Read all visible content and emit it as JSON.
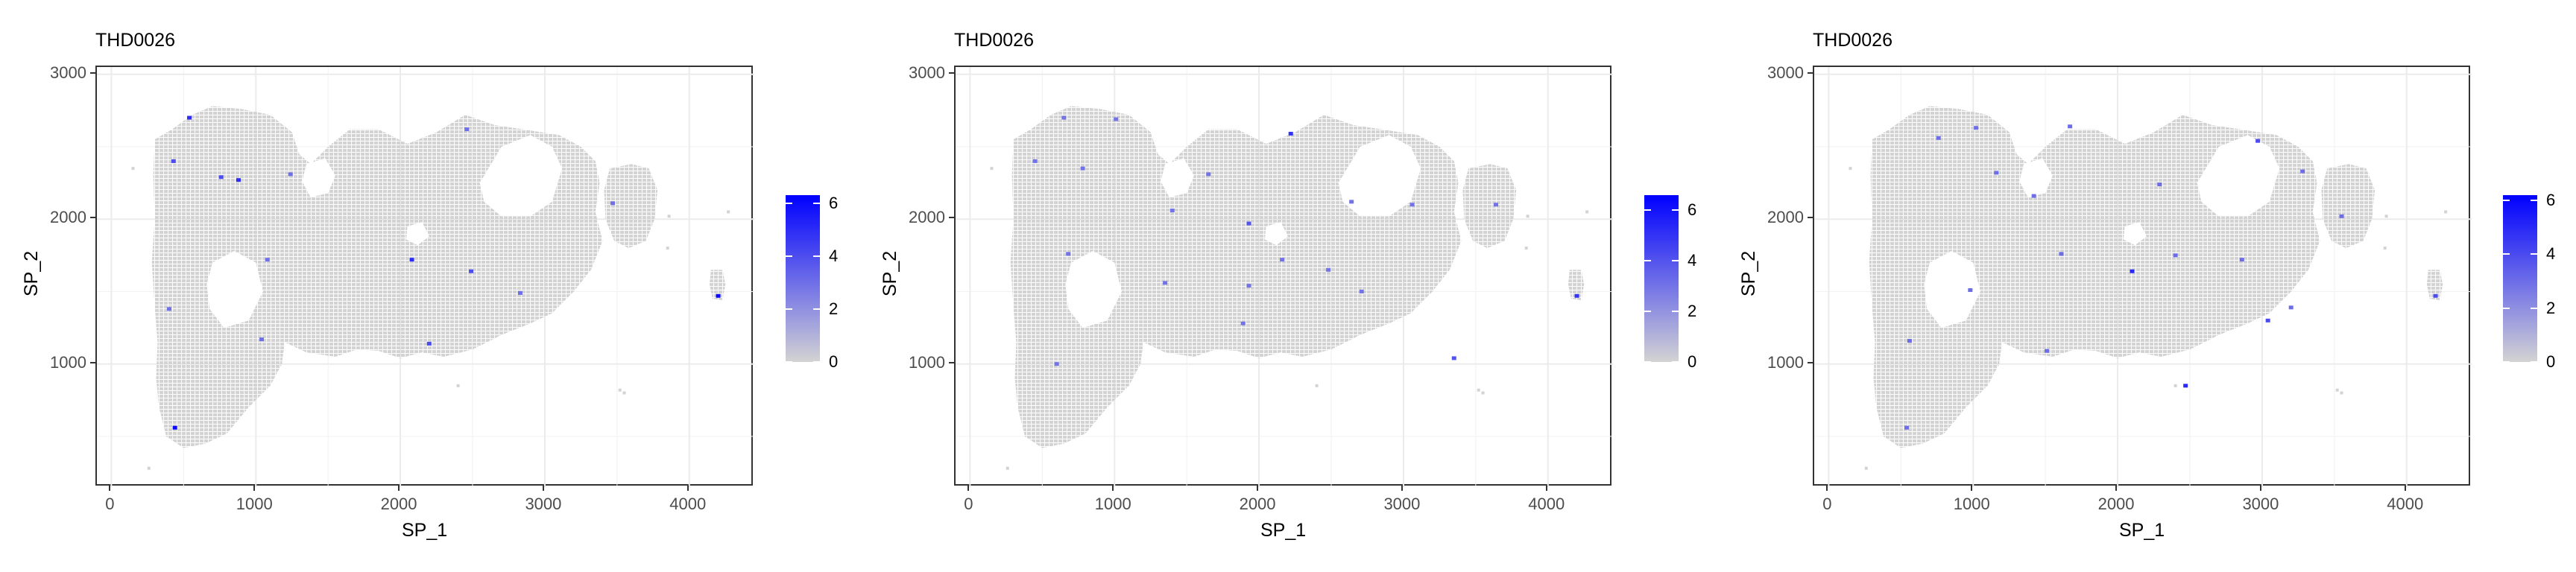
{
  "chart_data": [
    {
      "type": "scatter",
      "title": "THD0026",
      "xlabel": "SP_1",
      "ylabel": "SP_2",
      "xlim": [
        -100,
        4450
      ],
      "ylim": [
        150,
        3050
      ],
      "xticks": [
        0,
        1000,
        2000,
        3000,
        4000
      ],
      "yticks": [
        1000,
        2000,
        3000
      ],
      "legend": {
        "position": "right",
        "ticks": [
          0,
          2,
          4,
          6
        ],
        "low_color": "#d3d3d3",
        "high_color": "#0000ff",
        "max": 6.3
      },
      "grid": true,
      "highlight_points": [
        {
          "x": 540,
          "y": 2700,
          "v": 5
        },
        {
          "x": 430,
          "y": 2400,
          "v": 4
        },
        {
          "x": 760,
          "y": 2290,
          "v": 4
        },
        {
          "x": 880,
          "y": 2270,
          "v": 5
        },
        {
          "x": 1240,
          "y": 2310,
          "v": 3
        },
        {
          "x": 2460,
          "y": 2620,
          "v": 3
        },
        {
          "x": 2080,
          "y": 1720,
          "v": 5
        },
        {
          "x": 2490,
          "y": 1640,
          "v": 4
        },
        {
          "x": 3470,
          "y": 2110,
          "v": 3
        },
        {
          "x": 2830,
          "y": 1490,
          "v": 3
        },
        {
          "x": 2200,
          "y": 1140,
          "v": 4
        },
        {
          "x": 1040,
          "y": 1170,
          "v": 3
        },
        {
          "x": 400,
          "y": 1380,
          "v": 3
        },
        {
          "x": 440,
          "y": 560,
          "v": 6
        },
        {
          "x": 4200,
          "y": 1470,
          "v": 6
        },
        {
          "x": 1080,
          "y": 1720,
          "v": 3
        }
      ]
    },
    {
      "type": "scatter",
      "title": "THD0026",
      "xlabel": "SP_1",
      "ylabel": "SP_2",
      "xlim": [
        -100,
        4450
      ],
      "ylim": [
        150,
        3050
      ],
      "xticks": [
        0,
        1000,
        2000,
        3000,
        4000
      ],
      "yticks": [
        1000,
        2000,
        3000
      ],
      "legend": {
        "position": "right",
        "ticks": [
          0,
          2,
          4,
          6
        ],
        "low_color": "#d3d3d3",
        "high_color": "#0000ff",
        "max": 6.6
      },
      "grid": true,
      "highlight_points": [
        {
          "x": 650,
          "y": 2700,
          "v": 3
        },
        {
          "x": 1010,
          "y": 2690,
          "v": 3
        },
        {
          "x": 2220,
          "y": 2590,
          "v": 5
        },
        {
          "x": 450,
          "y": 2400,
          "v": 3
        },
        {
          "x": 780,
          "y": 2350,
          "v": 3
        },
        {
          "x": 1400,
          "y": 2060,
          "v": 3
        },
        {
          "x": 1930,
          "y": 1970,
          "v": 4
        },
        {
          "x": 2640,
          "y": 2120,
          "v": 3
        },
        {
          "x": 3060,
          "y": 2100,
          "v": 3
        },
        {
          "x": 680,
          "y": 1760,
          "v": 3
        },
        {
          "x": 1350,
          "y": 1560,
          "v": 3
        },
        {
          "x": 1930,
          "y": 1540,
          "v": 3
        },
        {
          "x": 2160,
          "y": 1720,
          "v": 3
        },
        {
          "x": 2710,
          "y": 1500,
          "v": 3
        },
        {
          "x": 1890,
          "y": 1280,
          "v": 3
        },
        {
          "x": 3350,
          "y": 1040,
          "v": 4
        },
        {
          "x": 4200,
          "y": 1470,
          "v": 5
        },
        {
          "x": 600,
          "y": 1000,
          "v": 3
        },
        {
          "x": 1650,
          "y": 2310,
          "v": 3
        },
        {
          "x": 2480,
          "y": 1650,
          "v": 3
        },
        {
          "x": 3640,
          "y": 2100,
          "v": 3
        }
      ]
    },
    {
      "type": "scatter",
      "title": "THD0026",
      "xlabel": "SP_1",
      "ylabel": "SP_2",
      "xlim": [
        -100,
        4450
      ],
      "ylim": [
        150,
        3050
      ],
      "xticks": [
        0,
        1000,
        2000,
        3000,
        4000
      ],
      "yticks": [
        1000,
        2000,
        3000
      ],
      "legend": {
        "position": "right",
        "ticks": [
          0,
          2,
          4,
          6
        ],
        "low_color": "#d3d3d3",
        "high_color": "#0000ff",
        "max": 6.2
      },
      "grid": true,
      "highlight_points": [
        {
          "x": 760,
          "y": 2560,
          "v": 3
        },
        {
          "x": 1020,
          "y": 2630,
          "v": 3
        },
        {
          "x": 1670,
          "y": 2640,
          "v": 3
        },
        {
          "x": 2290,
          "y": 2240,
          "v": 3
        },
        {
          "x": 2970,
          "y": 2540,
          "v": 4
        },
        {
          "x": 3280,
          "y": 2330,
          "v": 3
        },
        {
          "x": 1160,
          "y": 2320,
          "v": 3
        },
        {
          "x": 1420,
          "y": 2160,
          "v": 3
        },
        {
          "x": 1610,
          "y": 1760,
          "v": 3
        },
        {
          "x": 2100,
          "y": 1640,
          "v": 5
        },
        {
          "x": 2400,
          "y": 1750,
          "v": 3
        },
        {
          "x": 2860,
          "y": 1720,
          "v": 3
        },
        {
          "x": 3040,
          "y": 1300,
          "v": 4
        },
        {
          "x": 3200,
          "y": 1390,
          "v": 3
        },
        {
          "x": 2470,
          "y": 850,
          "v": 5
        },
        {
          "x": 980,
          "y": 1510,
          "v": 3
        },
        {
          "x": 560,
          "y": 1160,
          "v": 3
        },
        {
          "x": 540,
          "y": 560,
          "v": 3
        },
        {
          "x": 3550,
          "y": 2020,
          "v": 3
        },
        {
          "x": 4200,
          "y": 1470,
          "v": 4
        },
        {
          "x": 1510,
          "y": 1090,
          "v": 3
        }
      ]
    }
  ]
}
